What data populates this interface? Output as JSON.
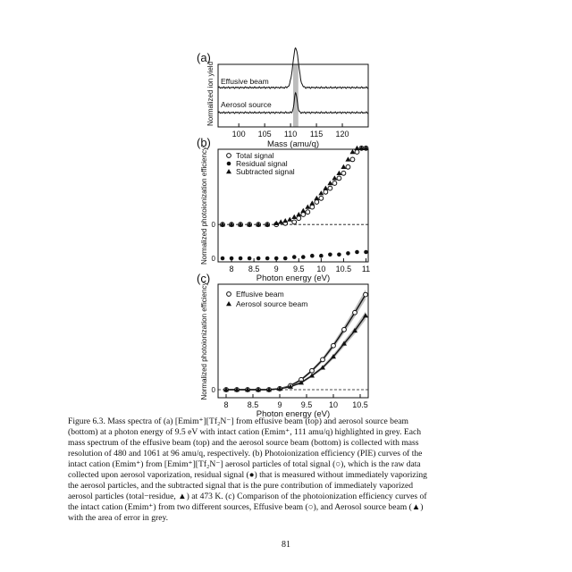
{
  "figure": {
    "panels": [
      {
        "label": "(a)",
        "chart_data": {
          "type": "line",
          "xlabel": "Mass (amu/q)",
          "ylabel": "Normalized ion yield",
          "xlim": [
            96,
            125
          ],
          "xticks": [
            "100",
            "105",
            "110",
            "115",
            "120"
          ],
          "highlight_band": [
            110.5,
            111.5
          ],
          "highlight_color": "#bdbdbd",
          "series": [
            {
              "name": "Effusive beam",
              "peak_mass": 111,
              "offset": 0.42
            },
            {
              "name": "Aerosol source",
              "peak_mass": 111,
              "offset": 0.0
            }
          ]
        }
      },
      {
        "label": "(b)",
        "chart_data": {
          "type": "scatter",
          "xlabel": "Photon energy (eV)",
          "ylabel": "Normalized photoionization efficiency",
          "xlim": [
            7.7,
            11.05
          ],
          "xticks": [
            "8",
            "8.5",
            "9",
            "9.5",
            "10",
            "10.5",
            "11"
          ],
          "ytick": "0",
          "series": [
            {
              "name": "Total signal",
              "marker": "open-circle",
              "offset": 0.27,
              "x": [
                7.8,
                8.0,
                8.2,
                8.4,
                8.6,
                8.8,
                9.0,
                9.2,
                9.4,
                9.5,
                9.6,
                9.7,
                9.8,
                9.9,
                10.0,
                10.1,
                10.2,
                10.3,
                10.4,
                10.5,
                10.6,
                10.7,
                10.8,
                10.9,
                11.0
              ],
              "y": [
                0,
                0,
                0,
                0,
                0,
                0,
                0,
                0.01,
                0.02,
                0.05,
                0.08,
                0.1,
                0.14,
                0.18,
                0.21,
                0.26,
                0.29,
                0.33,
                0.37,
                0.41,
                0.46,
                0.52,
                0.58,
                0.63,
                0.68
              ]
            },
            {
              "name": "Residual signal",
              "marker": "filled-circle",
              "offset": 0.0,
              "x": [
                7.8,
                8.0,
                8.2,
                8.4,
                8.6,
                8.8,
                9.0,
                9.2,
                9.4,
                9.6,
                9.8,
                10.0,
                10.2,
                10.4,
                10.6,
                10.8,
                11.0
              ],
              "y": [
                0,
                0,
                0,
                0,
                0,
                0,
                0,
                0,
                0.01,
                0.01,
                0.02,
                0.02,
                0.03,
                0.03,
                0.04,
                0.05,
                0.05
              ]
            },
            {
              "name": "Subtracted signal",
              "marker": "filled-triangle",
              "offset": 0.27,
              "x": [
                7.8,
                8.0,
                8.2,
                8.4,
                8.6,
                8.8,
                9.0,
                9.1,
                9.2,
                9.3,
                9.4,
                9.5,
                9.6,
                9.7,
                9.8,
                9.9,
                10.0,
                10.1,
                10.2,
                10.3,
                10.4,
                10.5,
                10.6,
                10.7,
                10.8,
                10.9,
                11.0
              ],
              "y": [
                0,
                0,
                0,
                0,
                0,
                0,
                0.01,
                0.02,
                0.03,
                0.04,
                0.06,
                0.08,
                0.11,
                0.14,
                0.17,
                0.21,
                0.25,
                0.29,
                0.33,
                0.37,
                0.41,
                0.46,
                0.52,
                0.58,
                0.65,
                0.72,
                0.8
              ]
            }
          ]
        }
      },
      {
        "label": "(c)",
        "chart_data": {
          "type": "scatter",
          "xlabel": "Photon energy (eV)",
          "ylabel": "Normalized photoionization efficiency",
          "xlim": [
            7.85,
            10.65
          ],
          "xticks": [
            "8",
            "8.5",
            "9",
            "9.5",
            "10",
            "10.5"
          ],
          "ytick": "0",
          "error_band_color": "#bdbdbd",
          "series": [
            {
              "name": "Effusive beam",
              "marker": "open-circle",
              "x": [
                8.0,
                8.2,
                8.4,
                8.6,
                8.8,
                9.0,
                9.2,
                9.4,
                9.6,
                9.8,
                10.0,
                10.2,
                10.4,
                10.6
              ],
              "y": [
                0,
                0,
                0,
                0,
                0,
                0.01,
                0.04,
                0.1,
                0.19,
                0.3,
                0.44,
                0.6,
                0.77,
                0.95
              ]
            },
            {
              "name": "Aerosol source beam",
              "marker": "filled-triangle",
              "x": [
                8.0,
                8.2,
                8.4,
                8.6,
                8.8,
                9.0,
                9.2,
                9.4,
                9.6,
                9.8,
                10.0,
                10.2,
                10.4,
                10.6
              ],
              "y": [
                0,
                0,
                0,
                0,
                0,
                0.01,
                0.03,
                0.07,
                0.14,
                0.22,
                0.33,
                0.46,
                0.59,
                0.74
              ]
            }
          ]
        }
      }
    ]
  },
  "caption": {
    "lines": [
      "Figure 6.3. Mass spectra of (a) [Emim⁺][Tf₂N⁻] from effusive beam (top) and aerosol source beam",
      "(bottom) at a photon energy of 9.5 eV with intact cation (Emim⁺, 111 amu/q) highlighted in grey. Each",
      "mass spectrum of the effusive beam (top) and the aerosol source beam (bottom) is collected with mass",
      "resolution of 480 and 1061 at 96 amu/q, respectively. (b) Photoionization efficiency (PIE) curves of the",
      "intact cation (Emim⁺) from [Emim⁺][Tf₂N⁻] aerosol particles of total signal (○), which is the raw data",
      "collected upon aerosol vaporization, residual signal (●) that is measured without immediately vaporizing",
      "the aerosol particles, and the subtracted signal that is the pure contribution of immediately vaporized",
      "aerosol particles (total−residue, ▲) at 473 K. (c) Comparison of the photoionization efficiency curves of",
      "the intact cation (Emim⁺) from two different sources, Effusive beam (○), and Aerosol source beam (▲)",
      "with the area of error in grey."
    ]
  },
  "page_number": "81"
}
